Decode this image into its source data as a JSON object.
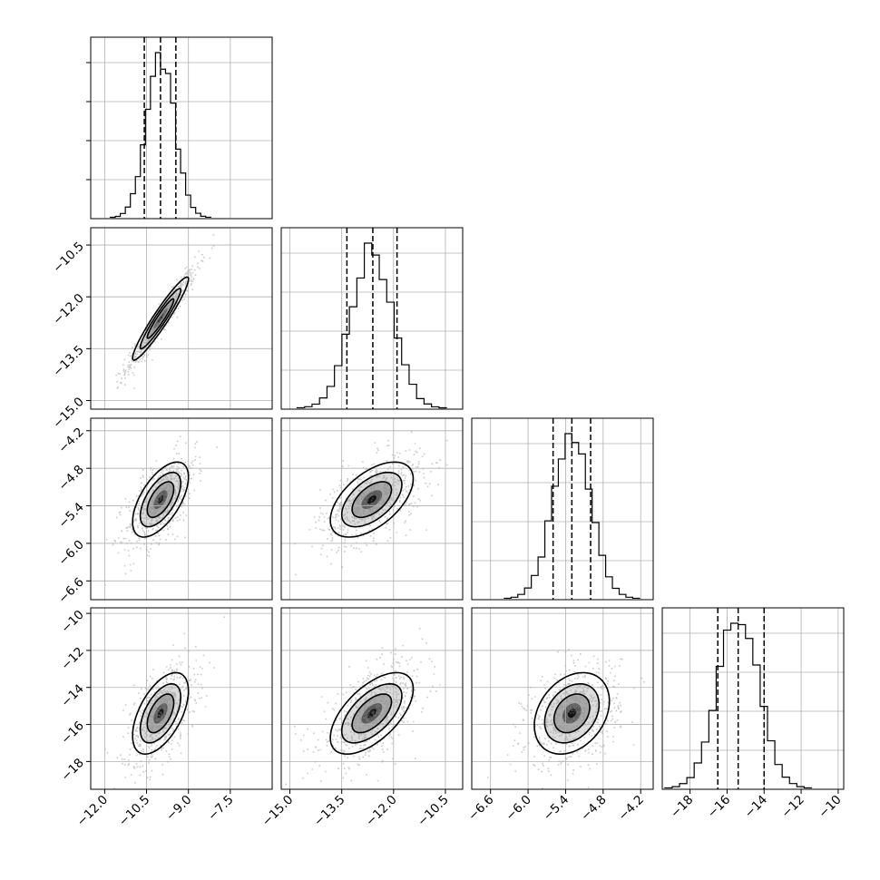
{
  "chart_data": {
    "type": "corner",
    "parameters": [
      {
        "range": [
          -12.5,
          -6.0
        ],
        "ticks": [
          -12.0,
          -10.5,
          -9.0,
          -7.5
        ],
        "tick_labels": [
          "−12.0",
          "−10.5",
          "−9.0",
          "−7.5"
        ],
        "mean": -10.0,
        "sigma": 0.5,
        "quantiles": [
          -10.58,
          -10.0,
          -9.45
        ]
      },
      {
        "range": [
          -15.25,
          -10.0
        ],
        "ticks": [
          -15.0,
          -13.5,
          -12.0,
          -10.5
        ],
        "tick_labels": [
          "−15.0",
          "−13.5",
          "−12.0",
          "−10.5"
        ],
        "mean": -12.63,
        "sigma": 0.6,
        "quantiles": [
          -13.35,
          -12.6,
          -11.9
        ]
      },
      {
        "range": [
          -6.9,
          -4.0
        ],
        "ticks": [
          -6.6,
          -6.0,
          -5.4,
          -4.8,
          -4.2
        ],
        "tick_labels": [
          "−6.6",
          "−6.0",
          "−5.4",
          "−4.8",
          "−4.2"
        ],
        "mean": -5.3,
        "sigma": 0.3,
        "quantiles": [
          -5.6,
          -5.3,
          -5.0
        ]
      },
      {
        "range": [
          -19.5,
          -9.7
        ],
        "ticks": [
          -18,
          -16,
          -14,
          -12,
          -10
        ],
        "tick_labels": [
          "−18",
          "−16",
          "−14",
          "−12",
          "−10"
        ],
        "mean": -15.4,
        "sigma": 1.1,
        "quantiles": [
          -16.5,
          -15.4,
          -14.0
        ]
      }
    ],
    "correlations": [
      [
        0,
        1,
        0.96
      ],
      [
        0,
        2,
        0.6
      ],
      [
        0,
        3,
        0.55
      ],
      [
        1,
        2,
        0.55
      ],
      [
        1,
        3,
        0.6
      ],
      [
        2,
        3,
        0.3
      ]
    ],
    "histogram_bins": 20,
    "grid": true,
    "colors": {
      "line": "#000000",
      "grid": "#b0b0b0",
      "points": "#8a8a8a"
    }
  }
}
